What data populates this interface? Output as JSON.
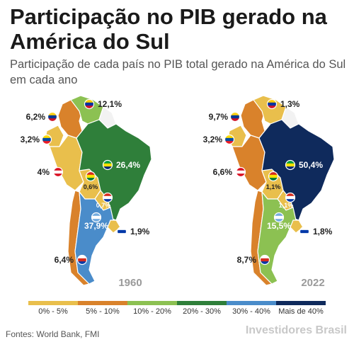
{
  "title": "Participação no PIB gerado na América do Sul",
  "subtitle": "Participação de cada país no PIB total gerado na América do Sul em cada ano",
  "colors": {
    "0-5": "#e9bf4c",
    "5-10": "#d9822b",
    "10-20": "#8cc152",
    "20-30": "#2f7f3a",
    "30-40": "#4a8cca",
    "40+": "#0f2a5c",
    "land_gray": "#f2f2f2"
  },
  "maps": [
    {
      "year": "1960",
      "shares": {
        "venezuela": "12,1%",
        "colombia": "6,2%",
        "ecuador": "3,2%",
        "peru": "4%",
        "bolivia": "0,6%",
        "brazil": "26,4%",
        "paraguay": "0,7%",
        "argentina": "37,9%",
        "uruguay": "1,9%",
        "chile": "6,4%"
      }
    },
    {
      "year": "2022",
      "shares": {
        "venezuela": "1,3%",
        "colombia": "9,7%",
        "ecuador": "3,2%",
        "peru": "6,6%",
        "bolivia": "1,1%",
        "brazil": "50,4%",
        "paraguay": "1,1%",
        "argentina": "15,5%",
        "uruguay": "1,8%",
        "chile": "8,7%"
      }
    }
  ],
  "legend": [
    {
      "label": "0% - 5%",
      "color": "#e9bf4c"
    },
    {
      "label": "5% - 10%",
      "color": "#d9822b"
    },
    {
      "label": "10% - 20%",
      "color": "#8cc152"
    },
    {
      "label": "20% - 30%",
      "color": "#2f7f3a"
    },
    {
      "label": "30% - 40%",
      "color": "#4a8cca"
    },
    {
      "label": "Mais de 40%",
      "color": "#0f2a5c"
    }
  ],
  "source": "Fontes: World Bank, FMI",
  "brand": "Investidores Brasil"
}
